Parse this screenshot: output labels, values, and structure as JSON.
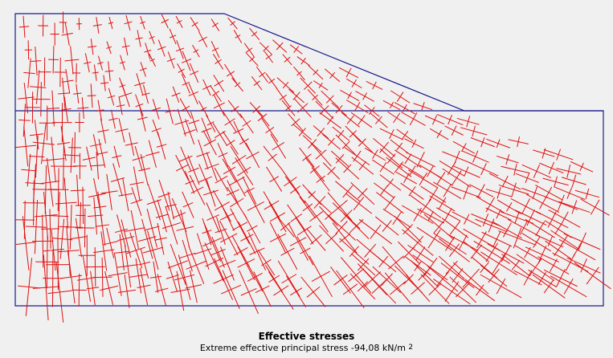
{
  "caption": {
    "title": "Effective stresses",
    "subtitle_prefix": "Extreme effective principal stress -94,08 kN/m",
    "subtitle_superscript": "2"
  },
  "colors": {
    "background": "#f0f0f0",
    "geometry": "#1a1a8c",
    "stress": "#e01010"
  },
  "icons": []
}
